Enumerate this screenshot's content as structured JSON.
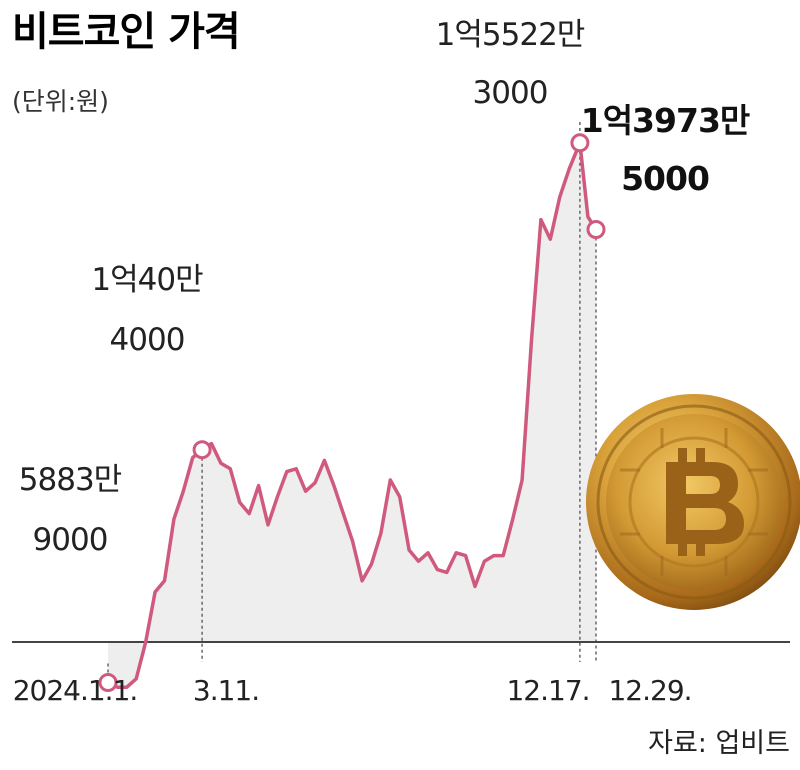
{
  "chart_data": {
    "type": "area",
    "title": "비트코인 가격",
    "unit_label": "(단위:원)",
    "source": "자료: 업비트",
    "x_ticks": [
      "2024.1.1.",
      "3.11.",
      "12.17.",
      "12.29."
    ],
    "annotations": [
      {
        "date": "2024.1.1.",
        "line1": "5883만",
        "line2": "9000",
        "value": 58839000
      },
      {
        "date": "3.11.",
        "line1": "1억40만",
        "line2": "4000",
        "value": 100404000
      },
      {
        "date": "12.17.",
        "line1": "1억5522만",
        "line2": "3000",
        "value": 155223000
      },
      {
        "date": "12.29.",
        "line1": "1억3973만",
        "line2": "5000",
        "value": 139735000
      }
    ],
    "series": [
      {
        "color": "#cf5a7e",
        "x": [
          "2024-01-01",
          "2024-01-08",
          "2024-01-15",
          "2024-01-22",
          "2024-01-29",
          "2024-02-05",
          "2024-02-12",
          "2024-02-19",
          "2024-02-26",
          "2024-03-04",
          "2024-03-11",
          "2024-03-18",
          "2024-03-25",
          "2024-04-01",
          "2024-04-08",
          "2024-04-15",
          "2024-04-22",
          "2024-04-29",
          "2024-05-06",
          "2024-05-13",
          "2024-05-20",
          "2024-05-27",
          "2024-06-03",
          "2024-06-10",
          "2024-06-17",
          "2024-06-24",
          "2024-07-01",
          "2024-07-08",
          "2024-07-15",
          "2024-07-22",
          "2024-07-29",
          "2024-08-05",
          "2024-08-12",
          "2024-08-19",
          "2024-08-26",
          "2024-09-02",
          "2024-09-09",
          "2024-09-16",
          "2024-09-23",
          "2024-09-30",
          "2024-10-07",
          "2024-10-14",
          "2024-10-21",
          "2024-10-28",
          "2024-11-04",
          "2024-11-11",
          "2024-11-18",
          "2024-11-25",
          "2024-12-02",
          "2024-12-09",
          "2024-12-17",
          "2024-12-23",
          "2024-12-29"
        ],
        "values": [
          58839000,
          58000000,
          58000000,
          59500000,
          66000000,
          75000000,
          77000000,
          88000000,
          93000000,
          99000000,
          100404000,
          101500000,
          98000000,
          97000000,
          91000000,
          89000000,
          94000000,
          87000000,
          92000000,
          96500000,
          97000000,
          93000000,
          94500000,
          98500000,
          94000000,
          89000000,
          84000000,
          77000000,
          80000000,
          85500000,
          95000000,
          92000000,
          82500000,
          80500000,
          82000000,
          79000000,
          78500000,
          82000000,
          81500000,
          76000000,
          80500000,
          81500000,
          81500000,
          88000000,
          95000000,
          120000000,
          141500000,
          138000000,
          145500000,
          150500000,
          155223000,
          142000000,
          139735000
        ]
      }
    ],
    "ylim": [
      45000000,
      170000000
    ],
    "grid": false,
    "legend": "none",
    "fill_color": "#eeeeee",
    "axis_color": "#444444",
    "guide_color": "#666666",
    "image": "bitcoin-coin"
  }
}
